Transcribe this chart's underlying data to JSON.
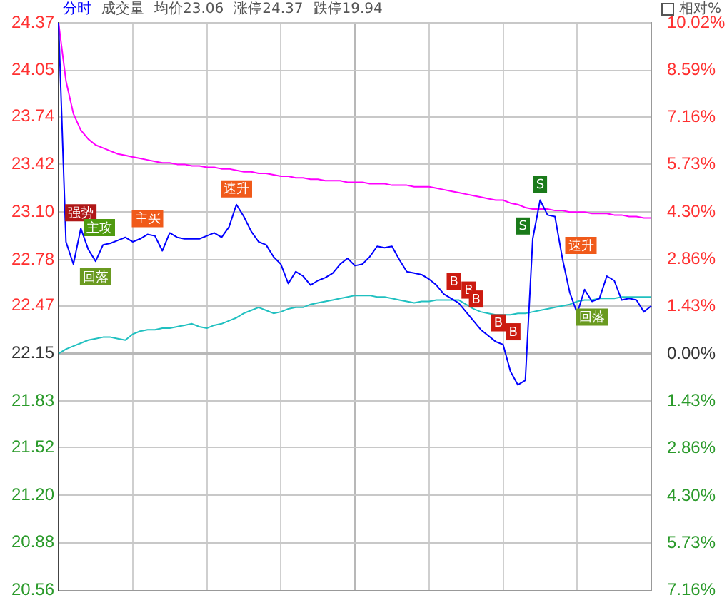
{
  "chart_data": {
    "type": "line",
    "annotations": [
      "分时",
      "成交量",
      "均价23.06",
      "涨停24.37",
      "跌停19.94",
      "相对%"
    ],
    "categories": [
      null,
      null,
      null,
      null,
      null,
      null,
      null,
      null,
      null,
      null,
      null,
      null,
      null,
      null,
      null,
      null,
      null,
      null,
      null,
      null,
      null,
      null,
      null,
      null,
      null,
      null,
      null,
      null,
      null,
      null,
      null,
      null,
      null,
      null,
      null,
      null,
      null,
      null,
      null,
      null,
      null,
      null,
      null,
      null,
      null,
      null,
      null,
      null,
      null,
      null,
      null,
      null,
      null,
      null,
      null,
      null,
      null,
      null,
      null,
      null,
      null,
      null,
      null,
      null,
      null,
      null,
      null,
      null,
      null,
      null,
      null,
      null,
      null,
      null,
      null,
      null,
      null,
      null,
      null,
      null,
      null
    ],
    "series": [
      {
        "color": "#0000ff",
        "values": [
          24.37,
          22.9,
          22.75,
          22.99,
          22.85,
          22.77,
          22.88,
          22.89,
          22.91,
          22.93,
          22.9,
          22.92,
          22.95,
          22.94,
          22.84,
          22.96,
          22.93,
          22.92,
          22.92,
          22.92,
          22.94,
          22.96,
          22.93,
          23.0,
          23.15,
          23.07,
          22.97,
          22.9,
          22.88,
          22.8,
          22.75,
          22.62,
          22.7,
          22.67,
          22.61,
          22.64,
          22.66,
          22.69,
          22.75,
          22.79,
          22.74,
          22.75,
          22.8,
          22.87,
          22.86,
          22.87,
          22.78,
          22.7,
          22.69,
          22.68,
          22.65,
          22.61,
          22.55,
          22.52,
          22.49,
          22.43,
          22.37,
          22.31,
          22.27,
          22.23,
          22.21,
          22.03,
          21.94,
          21.97,
          22.92,
          23.18,
          23.08,
          23.07,
          22.79,
          22.56,
          22.42,
          22.58,
          22.5,
          22.52,
          22.67,
          22.64,
          22.51,
          22.52,
          22.51,
          22.43,
          22.47
        ],
        "value_labels": [
          null,
          null,
          null,
          "强势",
          null,
          "回落",
          null,
          null,
          "主攻",
          null,
          null,
          null,
          "主买",
          null,
          null,
          null,
          null,
          null,
          null,
          null,
          null,
          null,
          null,
          null,
          "速升",
          null,
          null,
          null,
          null,
          null,
          null,
          null,
          null,
          null,
          null,
          null,
          null,
          null,
          null,
          null,
          null,
          null,
          null,
          null,
          null,
          null,
          null,
          null,
          null,
          null,
          null,
          null,
          "B",
          null,
          "B",
          "B",
          null,
          null,
          "B",
          null,
          "B",
          null,
          null,
          null,
          "S",
          "S",
          null,
          null,
          "速升",
          null,
          null,
          null,
          "回落",
          null,
          null,
          null,
          null,
          null,
          null,
          null,
          null
        ]
      },
      {
        "color": "#ff00ff",
        "values": [
          24.37,
          23.98,
          23.76,
          23.65,
          23.59,
          23.55,
          23.53,
          23.51,
          23.49,
          23.48,
          23.47,
          23.46,
          23.45,
          23.44,
          23.43,
          23.43,
          23.42,
          23.42,
          23.41,
          23.41,
          23.4,
          23.4,
          23.39,
          23.39,
          23.38,
          23.37,
          23.37,
          23.36,
          23.36,
          23.35,
          23.34,
          23.34,
          23.33,
          23.33,
          23.32,
          23.32,
          23.31,
          23.31,
          23.31,
          23.3,
          23.3,
          23.3,
          23.29,
          23.29,
          23.29,
          23.28,
          23.28,
          23.28,
          23.27,
          23.27,
          23.27,
          23.26,
          23.25,
          23.24,
          23.23,
          23.22,
          23.21,
          23.2,
          23.19,
          23.18,
          23.18,
          23.16,
          23.15,
          23.13,
          23.12,
          23.12,
          23.12,
          23.11,
          23.11,
          23.1,
          23.1,
          23.1,
          23.09,
          23.09,
          23.09,
          23.08,
          23.08,
          23.07,
          23.07,
          23.06,
          23.06
        ]
      },
      {
        "color": "#20c0c0",
        "values": [
          22.15,
          22.18,
          22.2,
          22.22,
          22.24,
          22.25,
          22.26,
          22.26,
          22.25,
          22.24,
          22.28,
          22.3,
          22.31,
          22.31,
          22.32,
          22.32,
          22.33,
          22.34,
          22.35,
          22.33,
          22.32,
          22.34,
          22.35,
          22.37,
          22.39,
          22.42,
          22.44,
          22.46,
          22.44,
          22.42,
          22.43,
          22.45,
          22.46,
          22.46,
          22.48,
          22.49,
          22.5,
          22.51,
          22.52,
          22.53,
          22.54,
          22.54,
          22.54,
          22.53,
          22.53,
          22.52,
          22.51,
          22.5,
          22.49,
          22.5,
          22.5,
          22.51,
          22.51,
          22.51,
          22.51,
          22.48,
          22.45,
          22.43,
          22.42,
          22.41,
          22.41,
          22.41,
          22.42,
          22.42,
          22.43,
          22.44,
          22.45,
          22.46,
          22.47,
          22.48,
          22.5,
          22.51,
          22.51,
          22.52,
          22.52,
          22.52,
          22.53,
          22.53,
          22.53,
          22.53,
          22.53
        ]
      }
    ],
    "ylim": [
      20.56,
      24.37
    ],
    "yticks": [
      20.56,
      20.88,
      {
        "value": 21.2,
        "label": "21.20"
      },
      21.52,
      21.83,
      22.15,
      22.47,
      22.78,
      {
        "value": 23.1,
        "label": "23.10"
      },
      23.42,
      23.74,
      24.05,
      24.37
    ],
    "y2lim": [
      -7.16,
      10.02
    ],
    "y2ticks": [
      {
        "value": -7.16,
        "label": "7.16%"
      },
      {
        "value": -5.73,
        "label": "5.73%"
      },
      {
        "value": -4.3,
        "label": "4.30%"
      },
      {
        "value": -2.86,
        "label": "2.86%"
      },
      {
        "value": -1.43,
        "label": "1.43%"
      },
      {
        "value": 0,
        "label": "0.00%"
      },
      {
        "value": 1.43,
        "label": "1.43%"
      },
      {
        "value": 2.86,
        "label": "2.86%"
      },
      {
        "value": 4.3,
        "label": "4.30%"
      },
      {
        "value": 5.73,
        "label": "5.73%"
      },
      {
        "value": 7.16,
        "label": "7.16%"
      },
      {
        "value": 8.59,
        "label": "8.59%"
      },
      {
        "value": 10.02,
        "label": "10.02%"
      }
    ],
    "ref_lines": [
      {
        "axis": "y",
        "value": 22.15,
        "color": "#b8b8b8"
      }
    ],
    "grid": true,
    "marker": "none",
    "line_style": "solid",
    "tick_labels": "y"
  }
}
